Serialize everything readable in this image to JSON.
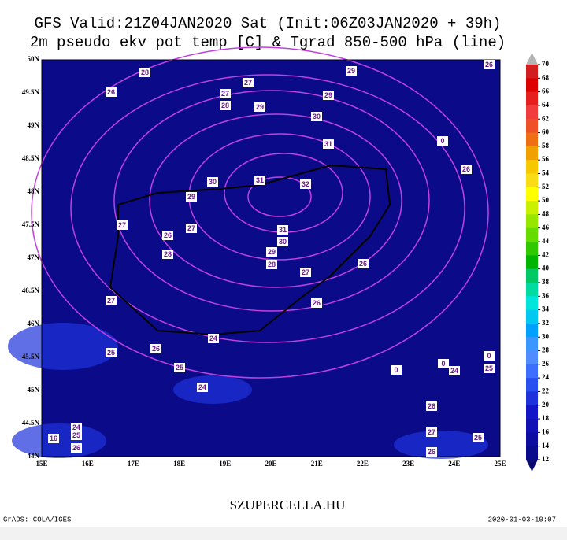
{
  "title": [
    "GFS Valid:21Z04JAN2020 Sat (Init:06Z03JAN2020 + 39h)",
    "2m pseudo ekv pot temp [C] & Tgrad 850-500 hPa (line)"
  ],
  "map": {
    "lat_labels": [
      "50N",
      "49.5N",
      "49N",
      "48.5N",
      "48N",
      "47.5N",
      "47N",
      "46.5N",
      "46N",
      "45.5N",
      "45N",
      "44.5N",
      "44N"
    ],
    "lon_labels": [
      "15E",
      "16E",
      "17E",
      "18E",
      "19E",
      "20E",
      "21E",
      "22E",
      "23E",
      "24E",
      "25E"
    ],
    "contour_labels": [
      "28",
      "26",
      "27",
      "28",
      "27",
      "29",
      "29",
      "29",
      "30",
      "31",
      "30",
      "31",
      "32",
      "29",
      "27",
      "26",
      "27",
      "31",
      "30",
      "29",
      "28",
      "28",
      "27",
      "26",
      "27",
      "26",
      "26",
      "24",
      "25",
      "25",
      "24",
      "26",
      "27",
      "26",
      "25",
      "24",
      "25",
      "0",
      "26",
      "26",
      "0",
      "0",
      "0",
      "24",
      "25",
      "26",
      "16"
    ],
    "background_color": "#0b0b8a",
    "contour_color": "#c040e0"
  },
  "colorbar": {
    "labels": [
      70,
      68,
      66,
      64,
      62,
      60,
      58,
      56,
      54,
      52,
      50,
      48,
      46,
      44,
      42,
      40,
      38,
      36,
      34,
      32,
      30,
      28,
      26,
      24,
      22,
      20,
      18,
      16,
      14,
      12
    ],
    "colors": [
      "#d21e1e",
      "#dc0000",
      "#e61e1e",
      "#f03c3c",
      "#f05028",
      "#f06e14",
      "#f0a000",
      "#f5c800",
      "#fadc14",
      "#ffff00",
      "#c8f000",
      "#96e600",
      "#64dc00",
      "#32c800",
      "#00b400",
      "#00c864",
      "#00dca0",
      "#00e6dc",
      "#00c8f0",
      "#00a0ff",
      "#3c96ff",
      "#508cff",
      "#3c6eff",
      "#2850f0",
      "#1e32dc",
      "#1414c8",
      "#1010b4",
      "#0c0ca0",
      "#0a0a8c"
    ],
    "top_color": "#b4b4b4",
    "bottom_color": "#0a0a70"
  },
  "footer": {
    "site": "SZUPERCELLA.HU",
    "credit": "GrADS: COLA/IGES",
    "timestamp": "2020-01-03-10:07"
  }
}
